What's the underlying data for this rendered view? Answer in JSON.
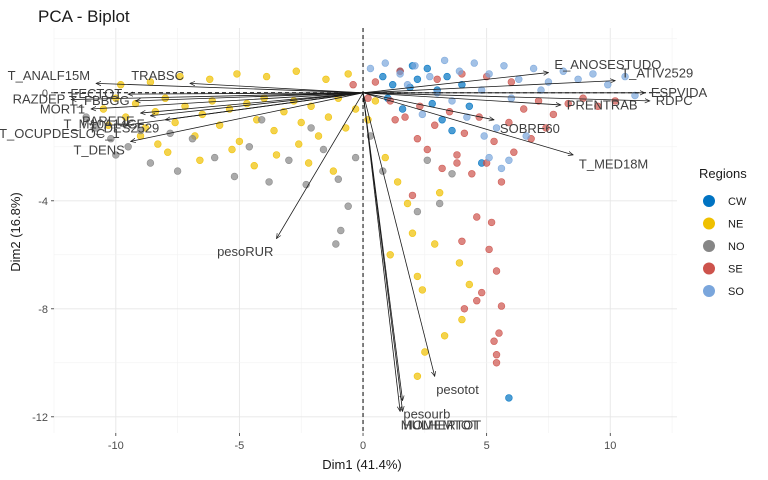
{
  "chart_data": {
    "type": "scatter",
    "title": "PCA - Biplot",
    "xlabel": "Dim1 (41.4%)",
    "ylabel": "Dim2 (16.8%)",
    "xlim": [
      -12.5,
      12.7
    ],
    "ylim": [
      -12.6,
      2.4
    ],
    "x_ticks": [
      -10,
      -5,
      0,
      5,
      10
    ],
    "y_ticks": [
      -12,
      -8,
      -4,
      0
    ],
    "x_tick_labels": [
      "-10",
      "-5",
      "0",
      "5",
      "10"
    ],
    "y_tick_labels": [
      "-12",
      "-8",
      "-4",
      "0"
    ],
    "grid": true,
    "reference_lines": {
      "x": 0,
      "y": 0,
      "style": "dashed"
    },
    "legend": {
      "title": "Regions",
      "placement": "right",
      "entries": [
        {
          "name": "CW",
          "color": "#0073C2"
        },
        {
          "name": "NE",
          "color": "#EFC000"
        },
        {
          "name": "NO",
          "color": "#868686"
        },
        {
          "name": "SE",
          "color": "#CD534C"
        },
        {
          "name": "SO",
          "color": "#7AA6DC"
        }
      ]
    },
    "series": [
      {
        "name": "CW",
        "color": "#0073C2",
        "points": [
          [
            0.8,
            0.6
          ],
          [
            1.2,
            0.3
          ],
          [
            1.5,
            0.8
          ],
          [
            1.9,
            0.2
          ],
          [
            2.2,
            0.5
          ],
          [
            2.6,
            0.9
          ],
          [
            3.0,
            0.1
          ],
          [
            3.4,
            0.6
          ],
          [
            1.0,
            -0.2
          ],
          [
            2.8,
            -0.4
          ],
          [
            4.3,
            -0.5
          ],
          [
            3.6,
            -1.4
          ],
          [
            4.8,
            -2.6
          ],
          [
            5.9,
            -11.3
          ],
          [
            3.2,
            -1.0
          ],
          [
            1.6,
            -0.6
          ],
          [
            4.0,
            0.3
          ],
          [
            2.0,
            1.0
          ]
        ]
      },
      {
        "name": "NE",
        "color": "#EFC000",
        "points": [
          [
            -10.5,
            -0.6
          ],
          [
            -10.0,
            -0.2
          ],
          [
            -9.6,
            -0.9
          ],
          [
            -9.2,
            -0.4
          ],
          [
            -8.8,
            -1.3
          ],
          [
            -8.4,
            -0.7
          ],
          [
            -8.0,
            -0.2
          ],
          [
            -7.6,
            -1.1
          ],
          [
            -7.2,
            -0.5
          ],
          [
            -6.8,
            -1.6
          ],
          [
            -6.5,
            -0.8
          ],
          [
            -6.1,
            -0.3
          ],
          [
            -5.8,
            -1.2
          ],
          [
            -5.4,
            -0.6
          ],
          [
            -5.0,
            -1.8
          ],
          [
            -4.7,
            -0.4
          ],
          [
            -4.3,
            -1.0
          ],
          [
            -4.0,
            -0.2
          ],
          [
            -3.6,
            -1.4
          ],
          [
            -3.2,
            -0.7
          ],
          [
            -2.8,
            -0.3
          ],
          [
            -2.5,
            -1.1
          ],
          [
            -2.1,
            -0.5
          ],
          [
            -1.8,
            -1.6
          ],
          [
            -1.4,
            -0.9
          ],
          [
            -1.0,
            -0.2
          ],
          [
            -0.7,
            -1.3
          ],
          [
            -0.3,
            -0.6
          ],
          [
            0.2,
            -1.0
          ],
          [
            0.5,
            -0.3
          ],
          [
            -9.8,
            0.3
          ],
          [
            -8.6,
            0.4
          ],
          [
            -7.4,
            0.6
          ],
          [
            -6.2,
            0.5
          ],
          [
            -5.1,
            0.7
          ],
          [
            -3.9,
            0.6
          ],
          [
            -2.7,
            0.8
          ],
          [
            -1.5,
            0.5
          ],
          [
            -0.6,
            0.7
          ],
          [
            -7.9,
            -2.2
          ],
          [
            -6.6,
            -2.5
          ],
          [
            -5.3,
            -2.1
          ],
          [
            -4.4,
            -2.7
          ],
          [
            -3.5,
            -2.3
          ],
          [
            -2.6,
            -1.9
          ],
          [
            1.4,
            -3.3
          ],
          [
            2.0,
            -5.2
          ],
          [
            2.2,
            -6.8
          ],
          [
            3.9,
            -6.3
          ],
          [
            4.0,
            -8.4
          ],
          [
            2.4,
            -7.3
          ],
          [
            1.8,
            -4.1
          ],
          [
            2.9,
            -5.6
          ],
          [
            3.3,
            -9.0
          ],
          [
            2.2,
            -10.5
          ],
          [
            2.5,
            -9.6
          ],
          [
            0.9,
            -2.4
          ],
          [
            1.1,
            -6.0
          ],
          [
            4.3,
            -7.1
          ],
          [
            3.1,
            -3.7
          ],
          [
            -1.2,
            -2.9
          ],
          [
            -2.2,
            -2.6
          ],
          [
            -8.3,
            -1.9
          ],
          [
            -9.0,
            -1.6
          ],
          [
            -10.3,
            -1.2
          ]
        ]
      },
      {
        "name": "NO",
        "color": "#868686",
        "points": [
          [
            -11.2,
            -0.9
          ],
          [
            -10.8,
            -1.3
          ],
          [
            -10.2,
            -1.7
          ],
          [
            -9.5,
            -2.0
          ],
          [
            -9.0,
            -1.4
          ],
          [
            -8.6,
            -2.6
          ],
          [
            -7.5,
            -2.9
          ],
          [
            -6.9,
            -1.7
          ],
          [
            -6.0,
            -2.4
          ],
          [
            -5.2,
            -3.1
          ],
          [
            -4.6,
            -2.0
          ],
          [
            -3.8,
            -3.3
          ],
          [
            -3.0,
            -2.5
          ],
          [
            -2.3,
            -3.4
          ],
          [
            -1.6,
            -2.1
          ],
          [
            -1.0,
            -3.2
          ],
          [
            -0.3,
            -2.4
          ],
          [
            -0.9,
            -5.1
          ],
          [
            -1.1,
            -5.6
          ],
          [
            -0.6,
            -4.2
          ],
          [
            0.8,
            -2.9
          ],
          [
            2.6,
            -2.5
          ],
          [
            2.2,
            -4.4
          ],
          [
            3.1,
            -4.1
          ],
          [
            3.6,
            -3.0
          ],
          [
            -2.1,
            -1.3
          ],
          [
            -4.1,
            -1.0
          ],
          [
            -7.8,
            -1.5
          ],
          [
            -10.0,
            -2.3
          ],
          [
            0.3,
            -1.6
          ]
        ]
      },
      {
        "name": "SE",
        "color": "#CD534C",
        "points": [
          [
            0.5,
            0.4
          ],
          [
            1.1,
            -0.3
          ],
          [
            1.7,
            -0.9
          ],
          [
            2.3,
            -0.5
          ],
          [
            2.9,
            -1.2
          ],
          [
            3.5,
            -0.7
          ],
          [
            4.1,
            -1.5
          ],
          [
            4.7,
            -0.9
          ],
          [
            5.3,
            -1.8
          ],
          [
            5.9,
            -1.1
          ],
          [
            6.5,
            -0.6
          ],
          [
            7.1,
            -0.3
          ],
          [
            7.7,
            -0.8
          ],
          [
            8.3,
            -0.4
          ],
          [
            8.9,
            -0.2
          ],
          [
            9.5,
            -0.5
          ],
          [
            10.2,
            -0.3
          ],
          [
            2.6,
            -2.1
          ],
          [
            3.2,
            -2.8
          ],
          [
            3.8,
            -2.3
          ],
          [
            4.4,
            -3.0
          ],
          [
            5.0,
            -2.6
          ],
          [
            5.6,
            -3.3
          ],
          [
            2.0,
            -3.8
          ],
          [
            4.6,
            -4.6
          ],
          [
            5.2,
            -4.8
          ],
          [
            4.0,
            -5.5
          ],
          [
            5.1,
            -5.8
          ],
          [
            5.4,
            -6.6
          ],
          [
            4.8,
            -7.4
          ],
          [
            5.6,
            -7.9
          ],
          [
            5.3,
            -9.2
          ],
          [
            5.4,
            -9.7
          ],
          [
            5.4,
            -10.0
          ],
          [
            4.6,
            -7.7
          ],
          [
            4.1,
            -8.0
          ],
          [
            5.5,
            -8.9
          ],
          [
            3.8,
            -2.6
          ],
          [
            2.2,
            -1.7
          ],
          [
            1.3,
            -1.0
          ],
          [
            0.2,
            -0.2
          ],
          [
            -0.4,
            0.3
          ],
          [
            6.1,
            -2.2
          ],
          [
            6.8,
            -1.7
          ],
          [
            7.4,
            -1.3
          ],
          [
            3.0,
            0.5
          ],
          [
            4.0,
            0.7
          ],
          [
            5.0,
            0.6
          ],
          [
            6.0,
            0.4
          ],
          [
            1.5,
            0.8
          ]
        ]
      },
      {
        "name": "SO",
        "color": "#7AA6DC",
        "points": [
          [
            0.3,
            0.9
          ],
          [
            0.9,
            1.1
          ],
          [
            1.5,
            0.7
          ],
          [
            2.1,
            1.0
          ],
          [
            2.7,
            0.6
          ],
          [
            3.3,
            1.2
          ],
          [
            3.9,
            0.8
          ],
          [
            4.5,
            1.1
          ],
          [
            5.1,
            0.7
          ],
          [
            5.7,
            1.0
          ],
          [
            6.3,
            0.5
          ],
          [
            6.9,
            0.9
          ],
          [
            7.5,
            0.4
          ],
          [
            8.1,
            0.8
          ],
          [
            8.7,
            0.5
          ],
          [
            9.3,
            0.7
          ],
          [
            9.9,
            0.3
          ],
          [
            10.6,
            0.6
          ],
          [
            11.0,
            -0.1
          ],
          [
            2.4,
            -0.8
          ],
          [
            3.6,
            -0.3
          ],
          [
            4.8,
            0.1
          ],
          [
            6.0,
            -0.2
          ],
          [
            7.2,
            0.1
          ],
          [
            1.8,
            0.3
          ],
          [
            3.0,
            0.0
          ],
          [
            4.2,
            -0.9
          ],
          [
            5.4,
            -1.3
          ],
          [
            6.6,
            -1.6
          ],
          [
            5.1,
            -2.4
          ],
          [
            5.6,
            -2.8
          ],
          [
            5.9,
            -2.5
          ],
          [
            4.9,
            -1.6
          ]
        ]
      }
    ],
    "variables": [
      {
        "name": "T_ANALF15M",
        "x": -10.8,
        "y": 0.35
      },
      {
        "name": "RAZDEP",
        "x": -11.8,
        "y": -0.25
      },
      {
        "name": "FECTOT",
        "x": -9.5,
        "y": -0.05
      },
      {
        "name": "T_FBBGG",
        "x": -9.2,
        "y": -0.3
      },
      {
        "name": "MORT1",
        "x": -11.0,
        "y": -0.6
      },
      {
        "name": "PAREDE",
        "x": -9.0,
        "y": -0.75
      },
      {
        "name": "T_M10A14CF",
        "x": -8.6,
        "y": -0.85
      },
      {
        "name": "T_OCUPDESLOC_1",
        "x": -9.6,
        "y": -1.2
      },
      {
        "name": "T_DES2529",
        "x": -8.0,
        "y": -1.0
      },
      {
        "name": "T_DENS",
        "x": -9.4,
        "y": -1.8
      },
      {
        "name": "TRABSC",
        "x": -7.0,
        "y": 0.35
      },
      {
        "name": "E_ANOSESTUDO",
        "x": 7.5,
        "y": 0.75
      },
      {
        "name": "T_ATIV2529",
        "x": 10.2,
        "y": 0.45
      },
      {
        "name": "ESPVIDA",
        "x": 11.4,
        "y": 0.0
      },
      {
        "name": "RDPC",
        "x": 11.6,
        "y": -0.3
      },
      {
        "name": "PRENTRAB",
        "x": 8.0,
        "y": -0.45
      },
      {
        "name": "SOBRE60",
        "x": 5.3,
        "y": -1.0
      },
      {
        "name": "T_MED18M",
        "x": 8.5,
        "y": -2.3
      },
      {
        "name": "pesoRUR",
        "x": -3.5,
        "y": -5.4
      },
      {
        "name": "pesotot",
        "x": 2.9,
        "y": -10.5
      },
      {
        "name": "pesourb",
        "x": 1.6,
        "y": -11.4
      },
      {
        "name": "MULHERTOT",
        "x": 1.5,
        "y": -11.8
      },
      {
        "name": "HOMEMTOT",
        "x": 1.6,
        "y": -11.8
      }
    ]
  }
}
